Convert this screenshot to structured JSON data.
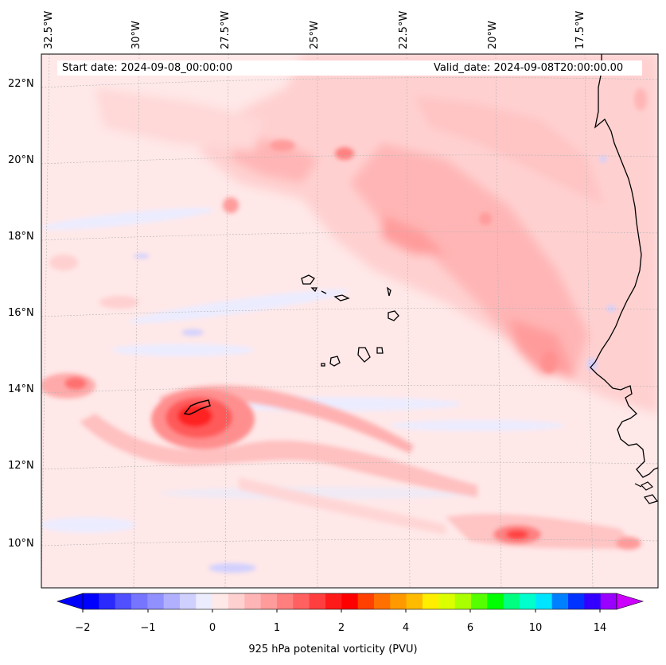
{
  "header": {
    "start_date": "Start date: 2024-09-08_00:00:00",
    "valid_date": "Valid_date: 2024-09-08T20:00:00.00"
  },
  "axes": {
    "lon_labels": [
      "32.5°W",
      "30°W",
      "27.5°W",
      "25°W",
      "22.5°W",
      "20°W",
      "17.5°W"
    ],
    "lat_labels": [
      "22°N",
      "20°N",
      "18°N",
      "16°N",
      "14°N",
      "12°N",
      "10°N"
    ]
  },
  "colorbar": {
    "title": "925 hPa potenital vorticity (PVU)",
    "tick_labels": [
      "−2",
      "−1",
      "0",
      "1",
      "2",
      "4",
      "6",
      "10",
      "14"
    ],
    "colors": [
      "#0000ff",
      "#2a2aff",
      "#5050ff",
      "#7575ff",
      "#9090ff",
      "#b0b0ff",
      "#d0d0ff",
      "#ececff",
      "#ffe8e8",
      "#ffd0d0",
      "#ffb5b5",
      "#ff9b9b",
      "#ff7f7f",
      "#ff6060",
      "#ff3f3f",
      "#ff1a1a",
      "#ff0000",
      "#ff4000",
      "#ff7000",
      "#ff9900",
      "#ffbb00",
      "#ffee00",
      "#dcff00",
      "#aaff00",
      "#55ff00",
      "#00ff00",
      "#00ff80",
      "#00ffcc",
      "#00e5ff",
      "#0080ff",
      "#0033ff",
      "#3300ff",
      "#9900ff"
    ]
  }
}
